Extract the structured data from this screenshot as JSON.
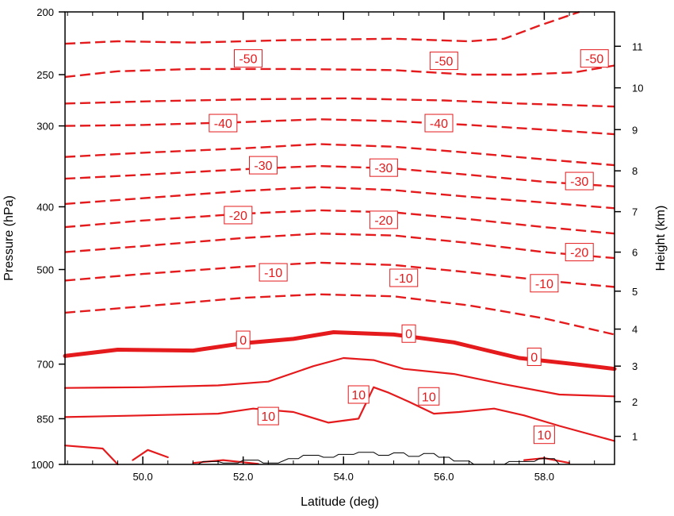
{
  "chart_data": {
    "type": "line",
    "title": "",
    "xlabel": "Latitude (deg)",
    "ylabel": "Pressure (hPa)",
    "y2label": "Height (km)",
    "xlim": [
      48.45,
      59.4
    ],
    "ylim_pressure": [
      1000,
      200
    ],
    "y_scale": "log",
    "x_ticks": [
      "50.0",
      "52.0",
      "54.0",
      "56.0",
      "58.0"
    ],
    "x_tick_values": [
      50,
      52,
      54,
      56,
      58
    ],
    "y_ticks": [
      "200",
      "250",
      "300",
      "400",
      "500",
      "700",
      "850",
      "1000"
    ],
    "y_tick_values": [
      200,
      250,
      300,
      400,
      500,
      700,
      850,
      1000
    ],
    "y2_ticks": [
      "1",
      "2",
      "3",
      "4",
      "5",
      "6",
      "7",
      "8",
      "9",
      "10",
      "11"
    ],
    "y2_tick_pressures": [
      905,
      800,
      705,
      618,
      540,
      470,
      407,
      352,
      304,
      262,
      226
    ],
    "line_color": "#e41a1c",
    "terrain_color": "#000000",
    "grid": false,
    "series": [
      {
        "style": "dashed",
        "points": [
          [
            48.45,
            224
          ],
          [
            49.5,
            222
          ],
          [
            51,
            223
          ],
          [
            53,
            221
          ],
          [
            55,
            220
          ],
          [
            56.5,
            222
          ],
          [
            57.2,
            220
          ],
          [
            57.9,
            210
          ],
          [
            58.7,
            200
          ]
        ]
      },
      {
        "style": "dashed",
        "points": [
          [
            48.45,
            252
          ],
          [
            49.5,
            247
          ],
          [
            51,
            245
          ],
          [
            53,
            245
          ],
          [
            55,
            246
          ],
          [
            56.5,
            250
          ],
          [
            57.5,
            250
          ],
          [
            58.6,
            248
          ],
          [
            59.4,
            242
          ]
        ]
      },
      {
        "style": "dashed",
        "points": [
          [
            48.45,
            277
          ],
          [
            50,
            275
          ],
          [
            52,
            273
          ],
          [
            54,
            272
          ],
          [
            56,
            274
          ],
          [
            57.5,
            277
          ],
          [
            59.4,
            280
          ]
        ]
      },
      {
        "style": "dashed",
        "points": [
          [
            48.45,
            300
          ],
          [
            50,
            299
          ],
          [
            52,
            296
          ],
          [
            53.5,
            293
          ],
          [
            55,
            295
          ],
          [
            56.5,
            299
          ],
          [
            58,
            304
          ],
          [
            59.4,
            309
          ]
        ]
      },
      {
        "style": "dashed",
        "points": [
          [
            48.45,
            335
          ],
          [
            50,
            330
          ],
          [
            52,
            325
          ],
          [
            53.5,
            320
          ],
          [
            55,
            323
          ],
          [
            56.5,
            330
          ],
          [
            58,
            338
          ],
          [
            59.4,
            345
          ]
        ]
      },
      {
        "style": "dashed",
        "points": [
          [
            48.45,
            362
          ],
          [
            50,
            357
          ],
          [
            52,
            350
          ],
          [
            53.5,
            346
          ],
          [
            55,
            349
          ],
          [
            56.5,
            357
          ],
          [
            58,
            366
          ],
          [
            59.4,
            372
          ]
        ]
      },
      {
        "style": "dashed",
        "points": [
          [
            48.45,
            396
          ],
          [
            50,
            388
          ],
          [
            52,
            378
          ],
          [
            53.5,
            373
          ],
          [
            55,
            377
          ],
          [
            56.5,
            386
          ],
          [
            58,
            394
          ],
          [
            59.4,
            402
          ]
        ]
      },
      {
        "style": "dashed",
        "points": [
          [
            48.45,
            430
          ],
          [
            50,
            420
          ],
          [
            52,
            410
          ],
          [
            53.5,
            405
          ],
          [
            55,
            408
          ],
          [
            56.5,
            418
          ],
          [
            58,
            430
          ],
          [
            59.4,
            440
          ]
        ]
      },
      {
        "style": "dashed",
        "points": [
          [
            48.45,
            470
          ],
          [
            50,
            460
          ],
          [
            52,
            447
          ],
          [
            53.5,
            440
          ],
          [
            55,
            443
          ],
          [
            56.5,
            455
          ],
          [
            58,
            470
          ],
          [
            59.4,
            480
          ]
        ]
      },
      {
        "style": "dashed",
        "points": [
          [
            48.45,
            520
          ],
          [
            50,
            508
          ],
          [
            52,
            495
          ],
          [
            53.5,
            488
          ],
          [
            55,
            492
          ],
          [
            56.5,
            505
          ],
          [
            58,
            520
          ],
          [
            59.4,
            532
          ]
        ]
      },
      {
        "style": "dashed",
        "points": [
          [
            48.45,
            583
          ],
          [
            50,
            570
          ],
          [
            52,
            553
          ],
          [
            53.5,
            546
          ],
          [
            55,
            550
          ],
          [
            56.5,
            568
          ],
          [
            58,
            595
          ],
          [
            59.4,
            630
          ]
        ]
      },
      {
        "style": "bold",
        "points": [
          [
            48.45,
            680
          ],
          [
            49.5,
            665
          ],
          [
            51,
            667
          ],
          [
            52,
            650
          ],
          [
            53,
            640
          ],
          [
            53.8,
            625
          ],
          [
            55,
            630
          ],
          [
            56.2,
            648
          ],
          [
            56.8,
            665
          ],
          [
            57.5,
            685
          ],
          [
            58.6,
            700
          ],
          [
            59.4,
            712
          ]
        ]
      },
      {
        "style": "solid",
        "points": [
          [
            48.45,
            762
          ],
          [
            50,
            760
          ],
          [
            51.5,
            755
          ],
          [
            52.5,
            745
          ],
          [
            53.4,
            705
          ],
          [
            54,
            685
          ],
          [
            54.6,
            690
          ],
          [
            55.2,
            712
          ],
          [
            56.2,
            725
          ],
          [
            57.2,
            752
          ],
          [
            58.3,
            780
          ],
          [
            59.4,
            785
          ]
        ]
      },
      {
        "style": "solid",
        "points": [
          [
            48.45,
            845
          ],
          [
            50,
            840
          ],
          [
            51.5,
            835
          ],
          [
            52.2,
            820
          ],
          [
            53,
            830
          ],
          [
            53.7,
            862
          ],
          [
            54.3,
            850
          ],
          [
            54.6,
            760
          ],
          [
            54.9,
            775
          ],
          [
            55.3,
            800
          ],
          [
            55.8,
            835
          ],
          [
            56.3,
            830
          ],
          [
            57,
            820
          ],
          [
            57.6,
            840
          ],
          [
            58.3,
            872
          ],
          [
            59.4,
            920
          ]
        ]
      },
      {
        "style": "solid",
        "points": [
          [
            48.45,
            935
          ],
          [
            49.2,
            945
          ],
          [
            49.5,
            1000
          ]
        ]
      },
      {
        "style": "solid",
        "points": [
          [
            49.8,
            985
          ],
          [
            50.1,
            950
          ],
          [
            50.5,
            975
          ]
        ]
      },
      {
        "style": "solid",
        "points": [
          [
            51,
            995
          ],
          [
            51.6,
            985
          ],
          [
            52.3,
            998
          ]
        ]
      },
      {
        "style": "solid",
        "points": [
          [
            57.6,
            985
          ],
          [
            58,
            978
          ],
          [
            58.5,
            995
          ]
        ]
      }
    ],
    "contour_labels": [
      {
        "text": "-50",
        "x": 52.1,
        "p": 236
      },
      {
        "text": "-50",
        "x": 56.0,
        "p": 238
      },
      {
        "text": "-50",
        "x": 59.0,
        "p": 236
      },
      {
        "text": "-40",
        "x": 51.6,
        "p": 297
      },
      {
        "text": "-40",
        "x": 55.9,
        "p": 297
      },
      {
        "text": "-30",
        "x": 52.4,
        "p": 345
      },
      {
        "text": "-30",
        "x": 54.8,
        "p": 348
      },
      {
        "text": "-30",
        "x": 58.7,
        "p": 365
      },
      {
        "text": "-20",
        "x": 51.9,
        "p": 412
      },
      {
        "text": "-20",
        "x": 54.8,
        "p": 419
      },
      {
        "text": "-20",
        "x": 58.7,
        "p": 470
      },
      {
        "text": "-10",
        "x": 52.6,
        "p": 505
      },
      {
        "text": "-10",
        "x": 55.2,
        "p": 515
      },
      {
        "text": "-10",
        "x": 58.0,
        "p": 525
      },
      {
        "text": "0",
        "x": 52.0,
        "p": 642
      },
      {
        "text": "0",
        "x": 55.3,
        "p": 628
      },
      {
        "text": "0",
        "x": 57.8,
        "p": 682
      },
      {
        "text": "10",
        "x": 52.5,
        "p": 842
      },
      {
        "text": "10",
        "x": 54.3,
        "p": 780
      },
      {
        "text": "10",
        "x": 55.7,
        "p": 785
      },
      {
        "text": "10",
        "x": 58.0,
        "p": 900
      }
    ],
    "terrain": [
      [
        51.1,
        1000
      ],
      [
        51.2,
        990
      ],
      [
        51.5,
        990
      ],
      [
        51.6,
        995
      ],
      [
        51.9,
        995
      ],
      [
        52.0,
        985
      ],
      [
        52.3,
        985
      ],
      [
        52.4,
        995
      ],
      [
        52.7,
        995
      ],
      [
        52.9,
        980
      ],
      [
        53.1,
        980
      ],
      [
        53.2,
        968
      ],
      [
        53.5,
        968
      ],
      [
        53.6,
        975
      ],
      [
        53.8,
        975
      ],
      [
        53.9,
        965
      ],
      [
        54.2,
        965
      ],
      [
        54.3,
        958
      ],
      [
        54.6,
        958
      ],
      [
        54.7,
        968
      ],
      [
        54.9,
        968
      ],
      [
        55.0,
        960
      ],
      [
        55.2,
        960
      ],
      [
        55.3,
        972
      ],
      [
        55.5,
        972
      ],
      [
        55.6,
        962
      ],
      [
        55.8,
        962
      ],
      [
        55.9,
        975
      ],
      [
        56.1,
        975
      ],
      [
        56.2,
        988
      ],
      [
        56.5,
        988
      ],
      [
        56.6,
        1000
      ],
      [
        57.2,
        1000
      ],
      [
        57.3,
        990
      ],
      [
        57.8,
        990
      ],
      [
        57.9,
        980
      ],
      [
        58.2,
        980
      ],
      [
        58.3,
        1000
      ]
    ]
  }
}
